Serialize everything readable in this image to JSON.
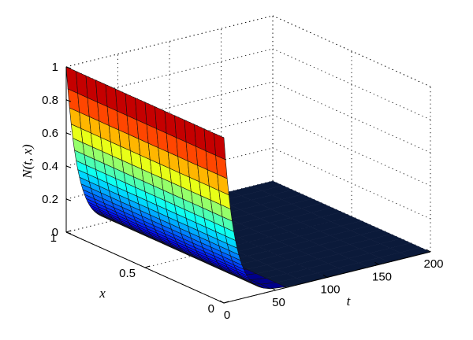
{
  "chart_data": {
    "type": "surface",
    "title": "",
    "xlabel": "t",
    "ylabel": "x",
    "zlabel": "N(t, x)",
    "t_ticks": [
      "0",
      "50",
      "100",
      "150",
      "200"
    ],
    "x_ticks": [
      "0",
      "0.5",
      "1"
    ],
    "z_ticks": [
      "0",
      "0.2",
      "0.4",
      "0.6",
      "0.8",
      "1"
    ],
    "t_range": [
      0,
      200
    ],
    "x_range": [
      0,
      1
    ],
    "z_range": [
      0,
      1
    ],
    "grid": true,
    "colormap": "jet",
    "surface_profile": {
      "description_values": {
        "t": [
          0,
          10,
          20,
          30,
          40,
          50,
          75,
          100,
          125,
          150,
          175,
          200
        ],
        "N_at_x0": [
          1.0,
          0.42,
          0.1,
          0.02,
          0.0,
          0.0,
          0.0,
          0.0,
          0.0,
          0.0,
          0.0,
          0.0
        ],
        "N_at_x1": [
          1.0,
          0.42,
          0.1,
          0.02,
          0.0,
          0.0,
          0.0,
          0.0,
          0.0,
          0.0,
          0.0,
          0.0
        ]
      }
    },
    "colors": {
      "high": "#8b0000",
      "mid_high": "#ff2a00",
      "mid": "#ffbf00",
      "low_mid": "#44ddcc",
      "low": "#0b1a3a"
    }
  }
}
